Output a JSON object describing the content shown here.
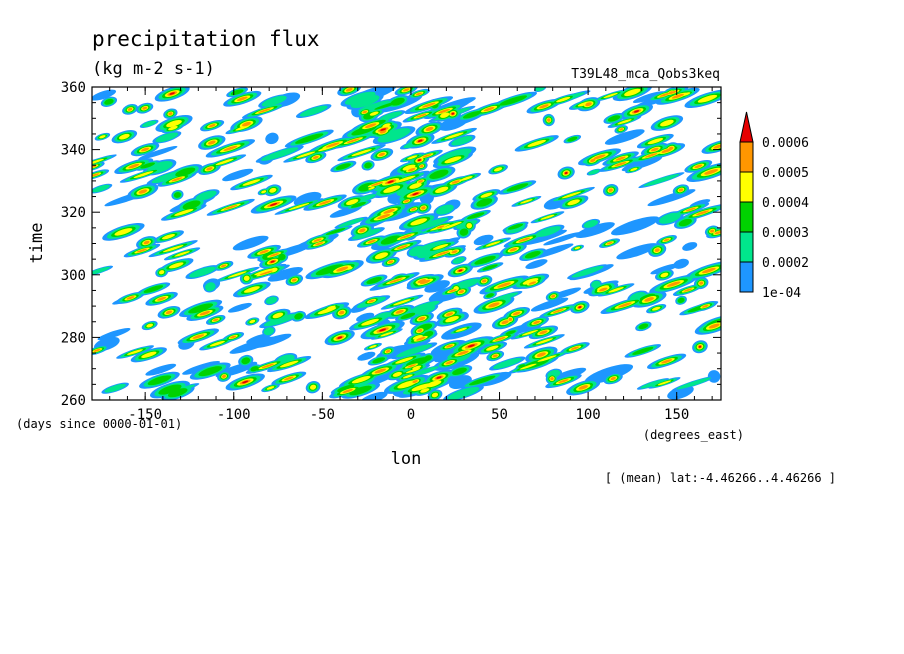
{
  "chart_data": {
    "type": "heatmap",
    "title": "precipitation flux",
    "units": "(kg m-2 s-1)",
    "run_label": "T39L48_mca_Qobs3keq",
    "xlabel": "lon",
    "x_units": "(degrees_east)",
    "ylabel": "time",
    "y_units": "(days since 0000-01-01)",
    "subtitle": "[ (mean) lat:-4.46266..4.46266 ]",
    "xlim": [
      -180,
      175
    ],
    "ylim": [
      260,
      360
    ],
    "x_ticks": [
      -150,
      -100,
      -50,
      0,
      50,
      100,
      150
    ],
    "x_tick_labels": [
      "-150",
      "-100",
      "-50",
      "0",
      "50",
      "100",
      "150"
    ],
    "y_ticks": [
      260,
      280,
      300,
      320,
      340,
      360
    ],
    "y_tick_labels": [
      "260",
      "280",
      "300",
      "320",
      "340",
      "360"
    ],
    "colorbar": {
      "levels": [
        0.0001,
        0.0002,
        0.0003,
        0.0004,
        0.0005,
        0.0006
      ],
      "labels": [
        "1e-04",
        "0.0002",
        "0.0003",
        "0.0004",
        "0.0005",
        "0.0006"
      ],
      "colors": [
        "#ffffff",
        "#1e96ff",
        "#00e68c",
        "#00d200",
        "#ffff00",
        "#ff9600",
        "#e60000"
      ]
    }
  }
}
